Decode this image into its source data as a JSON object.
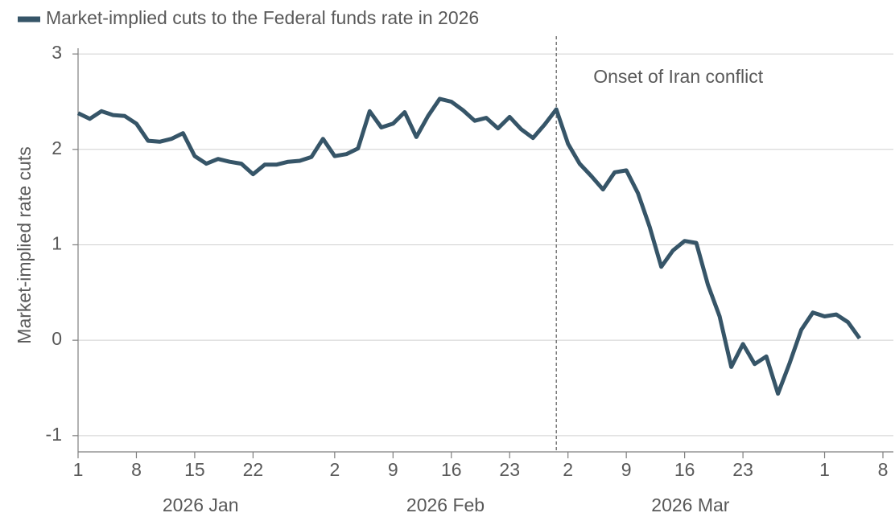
{
  "chart_data": {
    "type": "line",
    "title": "Market-implied cuts to the Federal funds rate in 2026",
    "y_label": "Market-implied rate cuts",
    "x": [
      "2026-01-01",
      "2026-01-02",
      "2026-01-05",
      "2026-01-06",
      "2026-01-07",
      "2026-01-08",
      "2026-01-09",
      "2026-01-12",
      "2026-01-13",
      "2026-01-14",
      "2026-01-15",
      "2026-01-16",
      "2026-01-19",
      "2026-01-20",
      "2026-01-21",
      "2026-01-22",
      "2026-01-23",
      "2026-01-26",
      "2026-01-27",
      "2026-01-28",
      "2026-01-29",
      "2026-01-30",
      "2026-02-02",
      "2026-02-03",
      "2026-02-04",
      "2026-02-05",
      "2026-02-06",
      "2026-02-09",
      "2026-02-10",
      "2026-02-11",
      "2026-02-12",
      "2026-02-13",
      "2026-02-16",
      "2026-02-17",
      "2026-02-18",
      "2026-02-19",
      "2026-02-20",
      "2026-02-23",
      "2026-02-24",
      "2026-02-25",
      "2026-02-26",
      "2026-02-27",
      "2026-03-02",
      "2026-03-03",
      "2026-03-04",
      "2026-03-05",
      "2026-03-06",
      "2026-03-09",
      "2026-03-10",
      "2026-03-11",
      "2026-03-12",
      "2026-03-13",
      "2026-03-16",
      "2026-03-17",
      "2026-03-18",
      "2026-03-19",
      "2026-03-20",
      "2026-03-23",
      "2026-03-24",
      "2026-03-25",
      "2026-03-26",
      "2026-03-27",
      "2026-03-30",
      "2026-03-31",
      "2026-04-01",
      "2026-04-02",
      "2026-04-03",
      "2026-04-06"
    ],
    "series": [
      {
        "name": "Market-implied cuts to the Federal funds rate in 2026",
        "color": "#365568",
        "values": [
          2.38,
          2.32,
          2.4,
          2.36,
          2.35,
          2.27,
          2.09,
          2.08,
          2.11,
          2.17,
          1.93,
          1.85,
          1.9,
          1.87,
          1.85,
          1.74,
          1.84,
          1.84,
          1.87,
          1.88,
          1.92,
          2.11,
          1.93,
          1.95,
          2.01,
          2.4,
          2.23,
          2.27,
          2.39,
          2.13,
          2.35,
          2.53,
          2.5,
          2.41,
          2.3,
          2.33,
          2.22,
          2.34,
          2.21,
          2.12,
          2.26,
          2.42,
          2.06,
          1.85,
          1.72,
          1.58,
          1.76,
          1.78,
          1.54,
          1.19,
          0.77,
          0.94,
          1.04,
          1.02,
          0.58,
          0.25,
          -0.28,
          -0.04,
          -0.25,
          -0.17,
          -0.56,
          -0.24,
          0.11,
          0.29,
          0.25,
          0.27,
          0.19,
          0.02
        ]
      }
    ],
    "xlim": [
      "2026-01-01",
      "2026-04-08"
    ],
    "xticks": [
      {
        "value": "2026-01-01",
        "label": "1"
      },
      {
        "value": "2026-01-08",
        "label": "8"
      },
      {
        "value": "2026-01-15",
        "label": "15"
      },
      {
        "value": "2026-01-22",
        "label": "22"
      },
      {
        "value": "2026-02-02",
        "label": "2"
      },
      {
        "value": "2026-02-09",
        "label": "9"
      },
      {
        "value": "2026-02-16",
        "label": "16"
      },
      {
        "value": "2026-02-23",
        "label": "23"
      },
      {
        "value": "2026-03-02",
        "label": "2"
      },
      {
        "value": "2026-03-09",
        "label": "9"
      },
      {
        "value": "2026-03-16",
        "label": "16"
      },
      {
        "value": "2026-03-23",
        "label": "23"
      },
      {
        "value": "2026-04-01",
        "label": "1"
      },
      {
        "value": "2026-04-08",
        "label": "8"
      }
    ],
    "x_groups": [
      {
        "label": "2026 Jan",
        "start": "2026-01-01",
        "end": "2026-01-30"
      },
      {
        "label": "2026 Feb",
        "start": "2026-02-02",
        "end": "2026-02-27"
      },
      {
        "label": "2026 Mar",
        "start": "2026-03-02",
        "end": "2026-03-31"
      }
    ],
    "ylim": [
      -1.17,
      3.06
    ],
    "yticks": [
      -1,
      0,
      1,
      2,
      3
    ],
    "grid": true,
    "legend": "top-left",
    "annotations": [
      {
        "text": "Onset of Iran conflict",
        "x": "2026-02-27"
      }
    ]
  }
}
